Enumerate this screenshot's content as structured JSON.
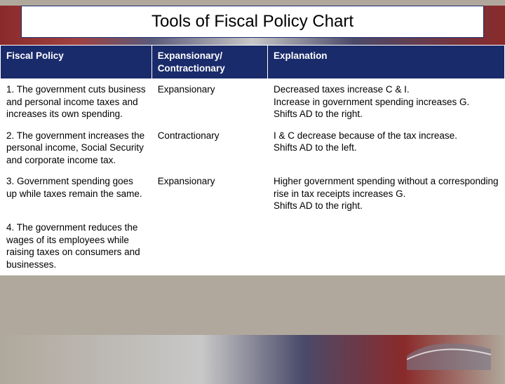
{
  "title": "Tools of Fiscal Policy Chart",
  "colors": {
    "header_bg": "#1a2b6b",
    "header_text": "#ffffff",
    "cell_bg": "#ffffff",
    "cell_text": "#000000",
    "title_border": "#1a2b6b",
    "page_bg": "#b0a89c"
  },
  "table": {
    "columns": [
      "Fiscal Policy",
      "Expansionary/ Contractionary",
      "Explanation"
    ],
    "column_widths_pct": [
      30,
      23,
      47
    ],
    "header_fontsize": 13.5,
    "cell_fontsize": 13.5,
    "rows": [
      {
        "policy": "1. The government cuts business and personal income taxes and increases its own spending.",
        "type": "Expansionary",
        "explanation": "Decreased taxes increase C & I.\nIncrease in government spending increases G.\nShifts AD to the right."
      },
      {
        "policy": "2. The government increases the personal income, Social Security and corporate income tax.",
        "type": "Contractionary",
        "explanation": "I & C decrease because of the tax increase.\nShifts AD to the left."
      },
      {
        "policy": "3. Government spending goes up while taxes remain the same.",
        "type": "Expansionary",
        "explanation": "Higher government spending without a corresponding rise in tax receipts increases G.\nShifts AD to the right."
      },
      {
        "policy": "4. The government reduces the wages of its employees while raising taxes on consumers and businesses.",
        "type": "",
        "explanation": ""
      }
    ]
  }
}
